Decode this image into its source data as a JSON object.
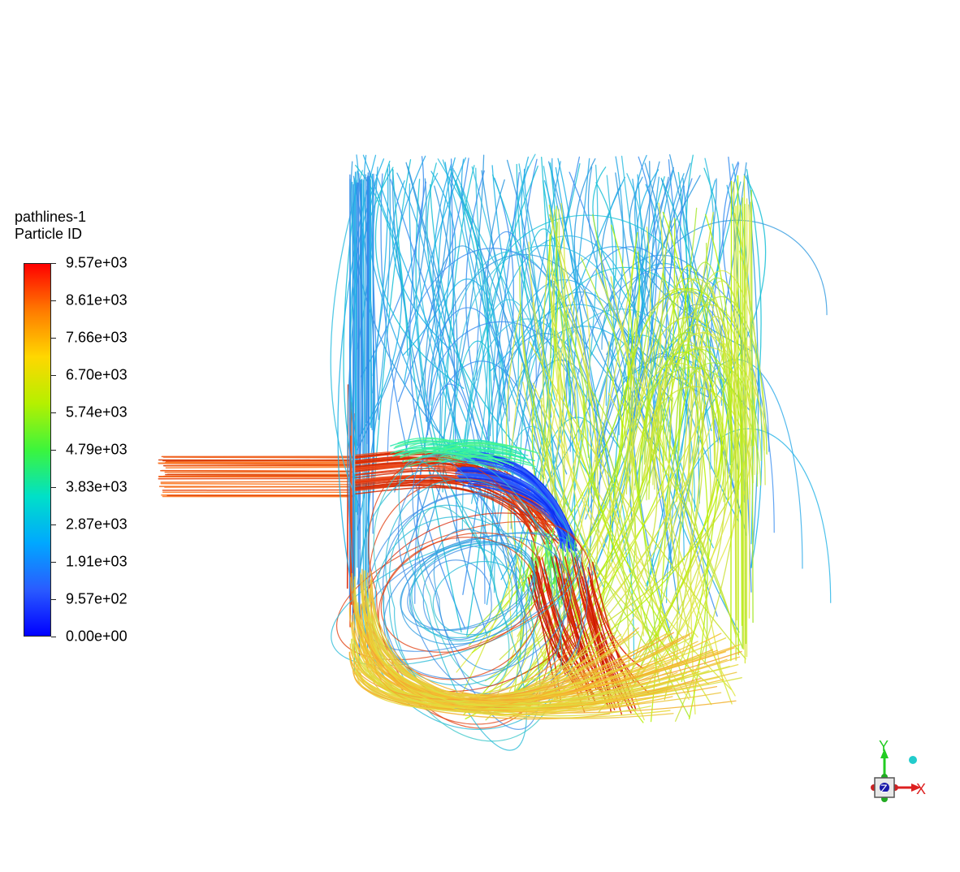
{
  "legend": {
    "title": "pathlines-1",
    "subtitle": "Particle ID",
    "ticks": [
      "9.57e+03",
      "8.61e+03",
      "7.66e+03",
      "6.70e+03",
      "5.74e+03",
      "4.79e+03",
      "3.83e+03",
      "2.87e+03",
      "1.91e+03",
      "9.57e+02",
      "0.00e+00"
    ],
    "colormap": [
      "#ff0000",
      "#ff7a00",
      "#ffd700",
      "#b5f000",
      "#3cf53c",
      "#00e0c8",
      "#00a8ff",
      "#2a5cff",
      "#0000ff"
    ]
  },
  "axes": {
    "x_label": "X",
    "y_label": "Y",
    "z_label": "Z"
  }
}
